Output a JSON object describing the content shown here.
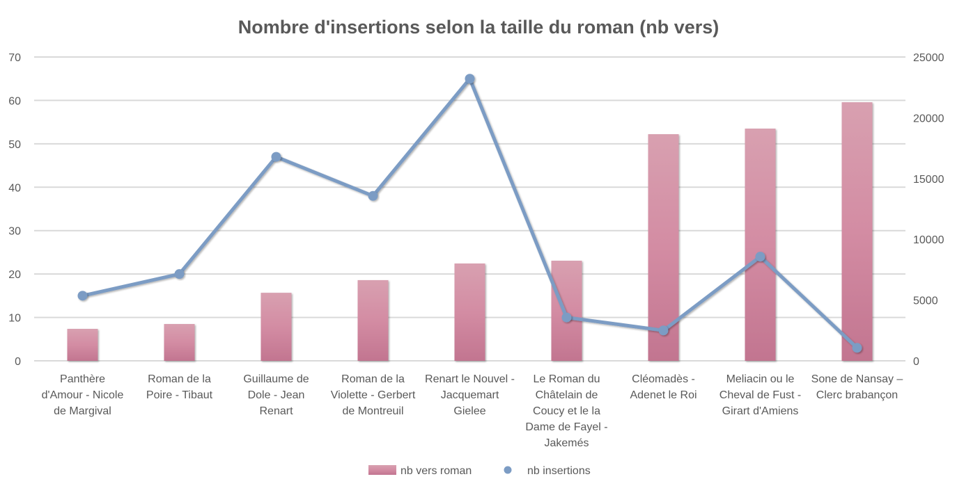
{
  "chart_data": {
    "type": "bar+line",
    "title": "Nombre d'insertions selon la taille du roman (nb vers)",
    "categories": [
      [
        "Panthère",
        "d'Amour - Nicole",
        "de Margival"
      ],
      [
        "Roman de la",
        "Poire - Tibaut"
      ],
      [
        "Guillaume de",
        "Dole - Jean",
        "Renart"
      ],
      [
        "Roman de la",
        "Violette - Gerbert",
        "de Montreuil"
      ],
      [
        "Renart le Nouvel -",
        "Jacquemart",
        "Gielee"
      ],
      [
        "Le Roman du",
        "Châtelain de",
        "Coucy et le la",
        "Dame de Fayel -",
        "Jakemés"
      ],
      [
        "Cléomadès -",
        "Adenet le Roi"
      ],
      [
        "Meliacin ou le",
        "Cheval de Fust -",
        "Girart d'Amiens"
      ],
      [
        "Sone de Nansay –",
        "Clerc brabançon"
      ]
    ],
    "series": [
      {
        "name": "nb vers roman",
        "type": "bar",
        "axis": "right",
        "color": "#d38ca3",
        "values": [
          2630,
          3030,
          5600,
          6640,
          8010,
          8240,
          18650,
          19110,
          21280
        ]
      },
      {
        "name": "nb insertions",
        "type": "line",
        "axis": "left",
        "color": "#7c9cc4",
        "values": [
          15,
          20,
          47,
          38,
          65,
          10,
          7,
          24,
          3
        ]
      }
    ],
    "left_axis": {
      "min": 0,
      "max": 70,
      "ticks": [
        "0",
        "10",
        "20",
        "30",
        "40",
        "50",
        "60",
        "70"
      ]
    },
    "right_axis": {
      "min": 0,
      "max": 25000,
      "ticks": [
        "0",
        "5000",
        "10000",
        "15000",
        "20000",
        "25000"
      ]
    },
    "grid": true,
    "legend": "bottom"
  }
}
